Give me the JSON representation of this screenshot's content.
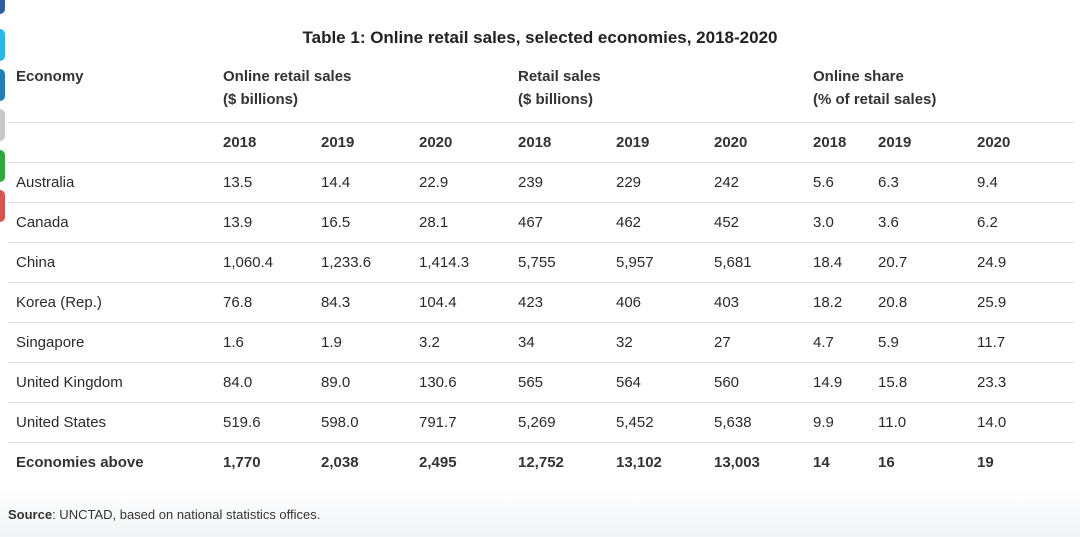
{
  "title": "Table 1: Online retail sales, selected economies, 2018-2020",
  "side_tab_colors": [
    "#2f5f9e",
    "#29b6e8",
    "#1f7fb6",
    "#c8c8c8",
    "#2eaa3c",
    "#d9534f"
  ],
  "headers": {
    "economy": "Economy",
    "online_sales": "Online retail sales",
    "online_sales_unit": "($ billions)",
    "retail_sales": "Retail sales",
    "retail_sales_unit": "($ billions)",
    "online_share": "Online share",
    "online_share_unit": "(% of retail sales)"
  },
  "years": [
    "2018",
    "2019",
    "2020",
    "2018",
    "2019",
    "2020",
    "2018",
    "2019",
    "2020"
  ],
  "rows": [
    {
      "name": "Australia",
      "values": [
        "13.5",
        "14.4",
        "22.9",
        "239",
        "229",
        "242",
        "5.6",
        "6.3",
        "9.4"
      ]
    },
    {
      "name": "Canada",
      "values": [
        "13.9",
        "16.5",
        "28.1",
        "467",
        "462",
        "452",
        "3.0",
        "3.6",
        "6.2"
      ]
    },
    {
      "name": "China",
      "values": [
        "1,060.4",
        "1,233.6",
        "1,414.3",
        "5,755",
        "5,957",
        "5,681",
        "18.4",
        "20.7",
        "24.9"
      ]
    },
    {
      "name": "Korea (Rep.)",
      "values": [
        "76.8",
        "84.3",
        "104.4",
        "423",
        "406",
        "403",
        "18.2",
        "20.8",
        "25.9"
      ]
    },
    {
      "name": "Singapore",
      "values": [
        "1.6",
        "1.9",
        "3.2",
        "34",
        "32",
        "27",
        "4.7",
        "5.9",
        "11.7"
      ]
    },
    {
      "name": "United Kingdom",
      "values": [
        "84.0",
        "89.0",
        "130.6",
        "565",
        "564",
        "560",
        "14.9",
        "15.8",
        "23.3"
      ]
    },
    {
      "name": "United States",
      "values": [
        "519.6",
        "598.0",
        "791.7",
        "5,269",
        "5,452",
        "5,638",
        "9.9",
        "11.0",
        "14.0"
      ]
    }
  ],
  "total": {
    "name": "Economies above",
    "values": [
      "1,770",
      "2,038",
      "2,495",
      "12,752",
      "13,102",
      "13,003",
      "14",
      "16",
      "19"
    ]
  },
  "source": {
    "label": "Source",
    "text": ": UNCTAD, based on national statistics offices."
  }
}
